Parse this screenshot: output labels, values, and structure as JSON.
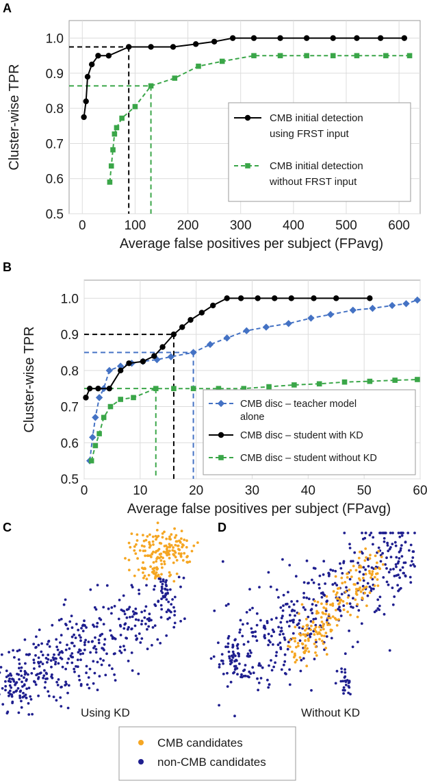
{
  "panels": {
    "a": "A",
    "b": "B",
    "c": "C",
    "d": "D"
  },
  "chart_data": [
    {
      "type": "line",
      "title": "",
      "xlabel": "Average false positives per subject (FPavg)",
      "ylabel": "Cluster-wise TPR",
      "xlim": [
        -25,
        640
      ],
      "ylim": [
        0.5,
        1.05
      ],
      "xticks": [
        0,
        100,
        200,
        300,
        400,
        500,
        600
      ],
      "yticks": [
        0.5,
        0.6,
        0.7,
        0.8,
        0.9,
        1.0
      ],
      "xtick_labels": [
        "0",
        "100",
        "200",
        "300",
        "400",
        "500",
        "600"
      ],
      "ytick_labels": [
        "0.5",
        "0.6",
        "0.7",
        "0.8",
        "0.9",
        "1.0"
      ],
      "grid": true,
      "legend_position": "lower-right",
      "series": [
        {
          "name": "CMB initial detection using FRST input",
          "legend_lines": [
            "CMB initial detection",
            "using FRST input"
          ],
          "color": "#000000",
          "marker": "circle",
          "dash": "solid",
          "x": [
            3,
            7,
            10,
            18,
            30,
            50,
            88,
            130,
            172,
            215,
            250,
            285,
            325,
            375,
            425,
            475,
            520,
            565,
            610
          ],
          "y": [
            0.775,
            0.82,
            0.89,
            0.925,
            0.95,
            0.95,
            0.975,
            0.975,
            0.975,
            0.983,
            0.99,
            1.0,
            1.0,
            1.0,
            1.0,
            1.0,
            1.0,
            1.0,
            1.0
          ]
        },
        {
          "name": "CMB initial detection without FRST input",
          "legend_lines": [
            "CMB initial detection",
            "without FRST input"
          ],
          "color": "#3aa648",
          "marker": "square",
          "dash": "dashed",
          "x": [
            52,
            55,
            58,
            61,
            65,
            75,
            100,
            130,
            175,
            220,
            265,
            325,
            375,
            425,
            475,
            520,
            575,
            620
          ],
          "y": [
            0.59,
            0.636,
            0.682,
            0.727,
            0.745,
            0.772,
            0.805,
            0.864,
            0.886,
            0.92,
            0.934,
            0.95,
            0.95,
            0.95,
            0.95,
            0.95,
            0.95,
            0.95
          ]
        }
      ],
      "reference_lines": [
        {
          "x": 88,
          "y": 0.975,
          "color": "#000000"
        },
        {
          "x": 130,
          "y": 0.864,
          "color": "#3aa648"
        }
      ]
    },
    {
      "type": "line",
      "title": "",
      "xlabel": "Average false positives per subject (FPavg)",
      "ylabel": "Cluster-wise TPR",
      "xlim": [
        0,
        60
      ],
      "ylim": [
        0.5,
        1.05
      ],
      "xticks": [
        0,
        10,
        20,
        30,
        40,
        50,
        60
      ],
      "yticks": [
        0.5,
        0.6,
        0.7,
        0.8,
        0.9,
        1.0
      ],
      "xtick_labels": [
        "0",
        "10",
        "20",
        "30",
        "40",
        "50",
        "60"
      ],
      "ytick_labels": [
        "0.5",
        "0.6",
        "0.7",
        "0.8",
        "0.9",
        "1.0"
      ],
      "grid": true,
      "legend_position": "lower-right",
      "series": [
        {
          "name": "CMB disc – teacher model alone",
          "legend_lines": [
            "CMB disc – teacher  model",
            "alone"
          ],
          "color": "#4472c4",
          "marker": "diamond",
          "dash": "dashed",
          "x": [
            1,
            1.5,
            2,
            2.7,
            3.5,
            4.5,
            6.5,
            8.5,
            10.5,
            13,
            15.5,
            19.5,
            22.5,
            25.5,
            29,
            32.5,
            36.5,
            40.5,
            44,
            48,
            51.5,
            55,
            57.5,
            59.5
          ],
          "y": [
            0.55,
            0.615,
            0.67,
            0.725,
            0.75,
            0.8,
            0.812,
            0.82,
            0.825,
            0.83,
            0.838,
            0.85,
            0.872,
            0.89,
            0.91,
            0.92,
            0.93,
            0.945,
            0.955,
            0.967,
            0.972,
            0.98,
            0.985,
            0.995
          ]
        },
        {
          "name": "CMB disc – student with KD",
          "legend_lines": [
            "CMB disc – student with KD"
          ],
          "color": "#000000",
          "marker": "circle",
          "dash": "solid",
          "x": [
            0.3,
            1,
            2.5,
            4.5,
            6.5,
            8,
            10.5,
            12.5,
            14,
            16,
            17.5,
            19,
            21,
            23,
            25.5,
            28,
            31,
            34,
            37,
            41,
            45,
            51
          ],
          "y": [
            0.725,
            0.75,
            0.75,
            0.75,
            0.8,
            0.82,
            0.825,
            0.84,
            0.865,
            0.9,
            0.92,
            0.94,
            0.96,
            0.98,
            1.0,
            1.0,
            1.0,
            1.0,
            1.0,
            1.0,
            1.0,
            1.0
          ]
        },
        {
          "name": "CMB disc – student without KD",
          "legend_lines": [
            "CMB disc – student  without KD"
          ],
          "color": "#3aa648",
          "marker": "square",
          "dash": "dashed",
          "x": [
            1.3,
            2,
            2.7,
            3.5,
            4.7,
            6.5,
            8.8,
            12.8,
            16,
            19.5,
            24,
            28.5,
            33,
            37.5,
            42,
            46.5,
            51,
            55.5,
            59.5
          ],
          "y": [
            0.55,
            0.592,
            0.625,
            0.67,
            0.7,
            0.72,
            0.725,
            0.75,
            0.75,
            0.75,
            0.75,
            0.75,
            0.755,
            0.76,
            0.763,
            0.768,
            0.77,
            0.773,
            0.775
          ]
        }
      ],
      "reference_lines": [
        {
          "x": 16,
          "y": 0.9,
          "color": "#000000"
        },
        {
          "x": 19.5,
          "y": 0.85,
          "color": "#4472c4"
        },
        {
          "x": 12.8,
          "y": 0.75,
          "color": "#3aa648"
        }
      ]
    },
    {
      "type": "scatter",
      "title": "Using KD",
      "series": [
        {
          "name": "CMB candidates",
          "color": "#f5a623"
        },
        {
          "name": "non-CMB candidates",
          "color": "#1f1f8f"
        }
      ]
    },
    {
      "type": "scatter",
      "title": "Without KD",
      "series": [
        {
          "name": "CMB candidates",
          "color": "#f5a623"
        },
        {
          "name": "non-CMB candidates",
          "color": "#1f1f8f"
        }
      ]
    }
  ]
}
